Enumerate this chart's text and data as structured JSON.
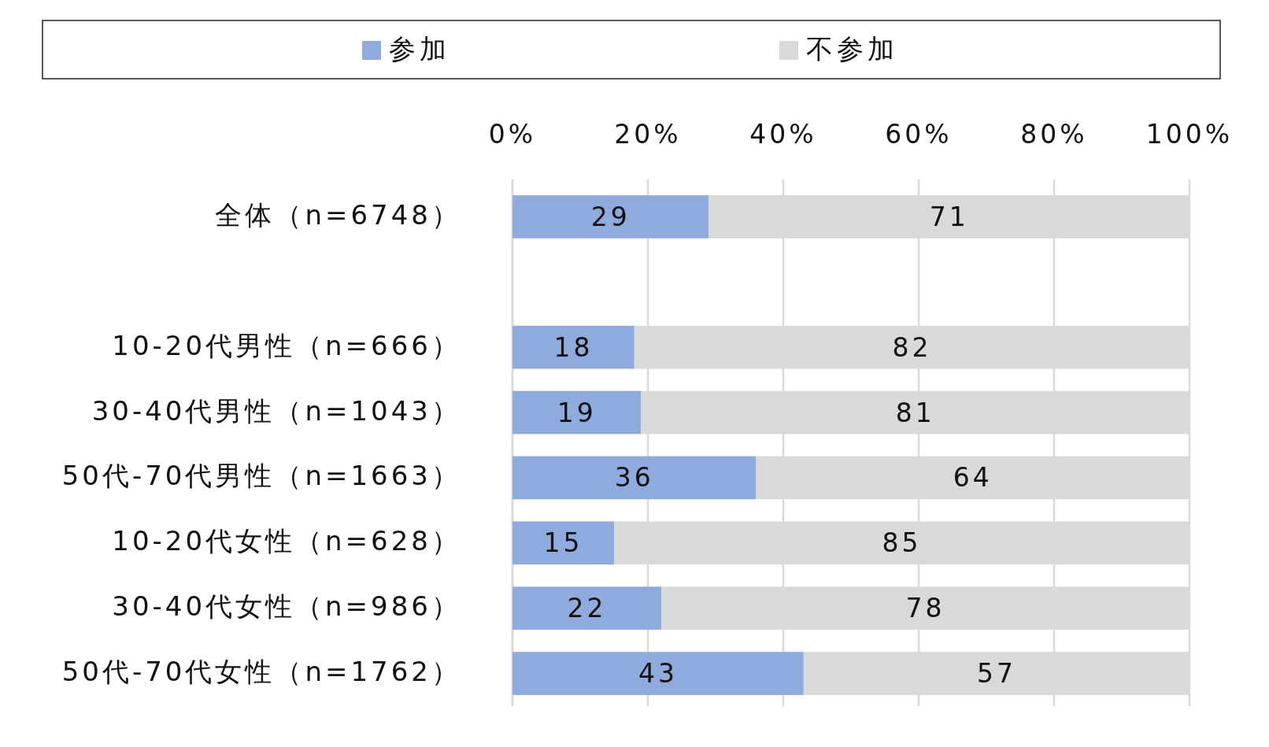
{
  "chart_data": {
    "type": "bar",
    "orientation": "horizontal",
    "stacked": true,
    "categories": [
      "全体（n=6748）",
      null,
      "10-20代男性（n=666）",
      "30-40代男性（n=1043）",
      "50代-70代男性（n=1663）",
      "10-20代女性（n=628）",
      "30-40代女性（n=986）",
      "50代-70代女性（n=1762）"
    ],
    "series": [
      {
        "name": "参加",
        "color": "#8faadc",
        "values": [
          29,
          null,
          18,
          19,
          36,
          15,
          22,
          43
        ]
      },
      {
        "name": "不参加",
        "color": "#d9d9d9",
        "values": [
          71,
          null,
          82,
          81,
          64,
          85,
          78,
          57
        ]
      }
    ],
    "xlim": [
      0,
      100
    ],
    "xticks": [
      {
        "value": 0,
        "label": "0%"
      },
      {
        "value": 20,
        "label": "20%"
      },
      {
        "value": 40,
        "label": "40%"
      },
      {
        "value": 60,
        "label": "60%"
      },
      {
        "value": 80,
        "label": "80%"
      },
      {
        "value": 100,
        "label": "100%"
      }
    ],
    "grid": "x",
    "legend": "top",
    "data_labels": true
  }
}
